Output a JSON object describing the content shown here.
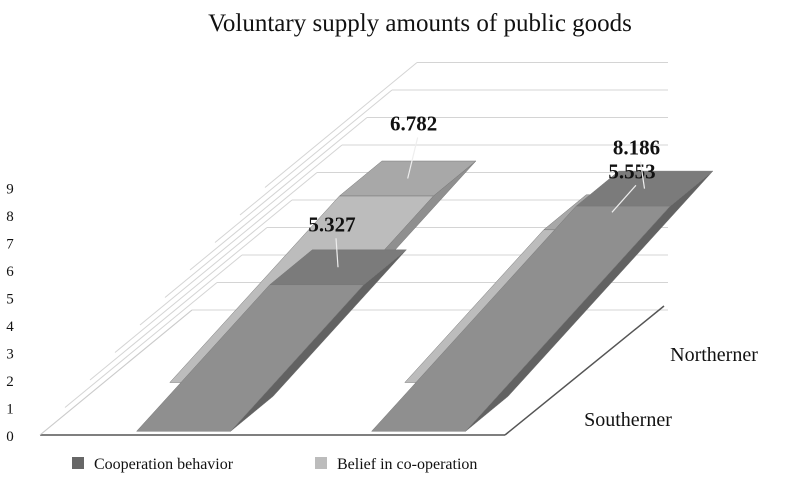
{
  "chart_data": {
    "type": "bar",
    "title": "Voluntary supply amounts of public goods",
    "categories": [
      "Southerner",
      "Northerner"
    ],
    "series": [
      {
        "name": "Cooperation behavior",
        "values": [
          5.327,
          8.186
        ],
        "color": "#8f8f8f"
      },
      {
        "name": "Belief in co-operation",
        "values": [
          6.782,
          5.553
        ],
        "color": "#bcbcbc"
      }
    ],
    "value_labels": [
      "5.327",
      "8.186",
      "6.782",
      "5.553"
    ],
    "yticks": [
      0,
      1,
      2,
      3,
      4,
      5,
      6,
      7,
      8,
      9
    ],
    "ylim": [
      0,
      9
    ],
    "xlabel": "",
    "ylabel": "",
    "legend_position": "bottom-left",
    "style": "3d-column"
  }
}
